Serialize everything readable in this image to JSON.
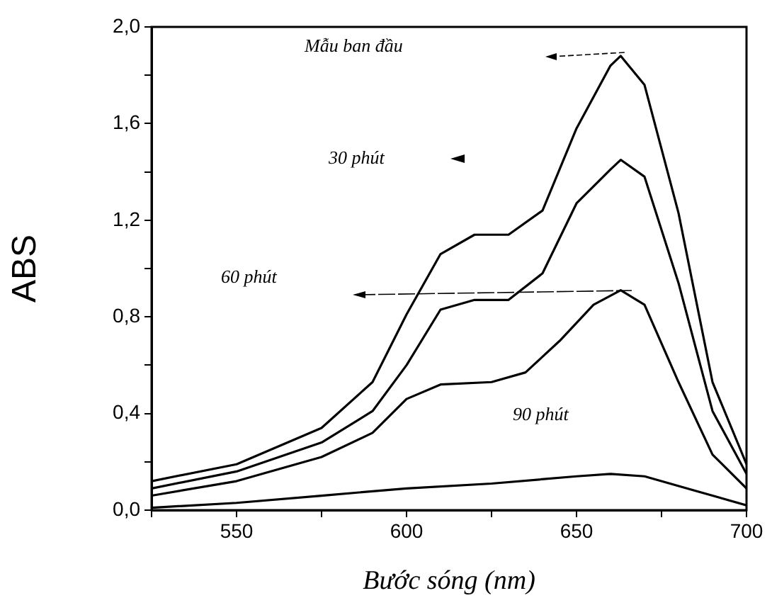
{
  "chart_data": {
    "type": "line",
    "xlabel": "Bước sóng (nm)",
    "ylabel": "ABS",
    "xlim": [
      525,
      700
    ],
    "ylim": [
      0,
      2
    ],
    "xticks": [
      {
        "value": 525,
        "label": null
      },
      550,
      {
        "value": 575,
        "label": null
      },
      600,
      {
        "value": 625,
        "label": null
      },
      650,
      {
        "value": 675,
        "label": null
      },
      700
    ],
    "yticks": [
      {
        "value": 0,
        "label": "0,0"
      },
      {
        "value": 0.2,
        "label": null
      },
      {
        "value": 0.4,
        "label": "0,4"
      },
      {
        "value": 0.6,
        "label": null
      },
      {
        "value": 0.8,
        "label": "0,8"
      },
      {
        "value": 1.0,
        "label": null
      },
      {
        "value": 1.2,
        "label": "1,2"
      },
      {
        "value": 1.4,
        "label": null
      },
      {
        "value": 1.6,
        "label": "1,6"
      },
      {
        "value": 1.8,
        "label": null
      },
      {
        "value": 2.0,
        "label": "2,0"
      }
    ],
    "grid": false,
    "legend": false,
    "marker": "none",
    "line_style": "solid",
    "series": [
      {
        "color": "#000000",
        "x": [
          525,
          550,
          575,
          590,
          600,
          610,
          620,
          630,
          640,
          650,
          660,
          663,
          670,
          680,
          690,
          700
        ],
        "values": [
          0.12,
          0.19,
          0.34,
          0.53,
          0.81,
          1.06,
          1.14,
          1.14,
          1.24,
          1.58,
          1.84,
          1.88,
          1.76,
          1.23,
          0.53,
          0.19
        ]
      },
      {
        "color": "#000000",
        "x": [
          525,
          550,
          575,
          590,
          600,
          610,
          620,
          630,
          640,
          650,
          660,
          663,
          670,
          680,
          690,
          700
        ],
        "values": [
          0.09,
          0.16,
          0.28,
          0.41,
          0.6,
          0.83,
          0.87,
          0.87,
          0.98,
          1.27,
          1.41,
          1.45,
          1.38,
          0.94,
          0.41,
          0.15
        ]
      },
      {
        "color": "#000000",
        "x": [
          525,
          550,
          575,
          590,
          600,
          610,
          625,
          635,
          645,
          655,
          663,
          670,
          680,
          690,
          700
        ],
        "values": [
          0.06,
          0.12,
          0.22,
          0.32,
          0.46,
          0.52,
          0.53,
          0.57,
          0.7,
          0.85,
          0.91,
          0.85,
          0.53,
          0.23,
          0.09
        ]
      },
      {
        "color": "#000000",
        "x": [
          525,
          550,
          575,
          600,
          625,
          650,
          660,
          670,
          685,
          700
        ],
        "values": [
          0.01,
          0.03,
          0.06,
          0.09,
          0.11,
          0.14,
          0.15,
          0.14,
          0.08,
          0.02
        ]
      }
    ],
    "annotations": [
      "Mẫu ban đầu",
      "30 phút",
      "60 phút",
      "90 phút"
    ]
  }
}
